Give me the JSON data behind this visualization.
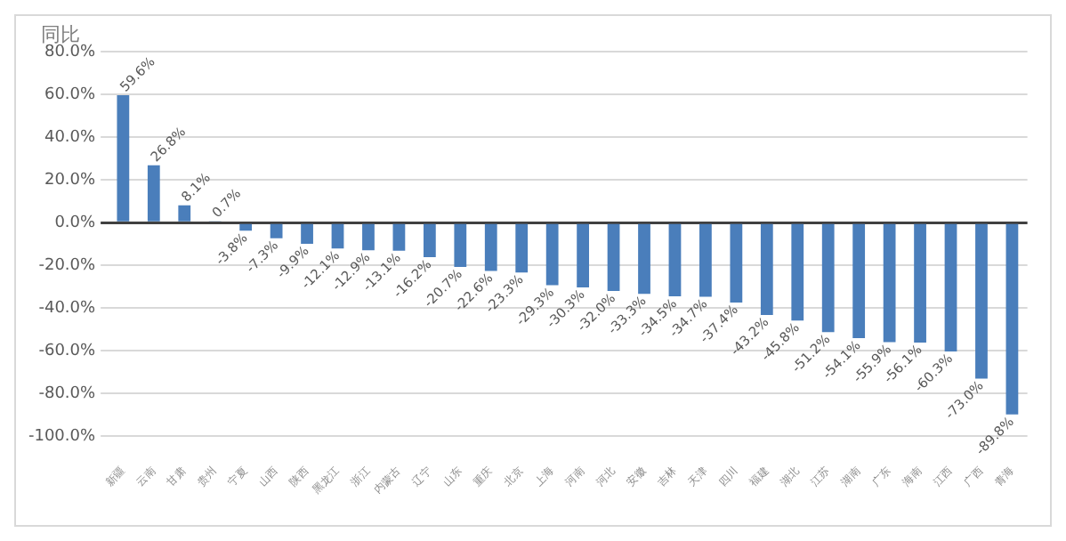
{
  "chart_data": {
    "type": "bar",
    "ylabel": "同比",
    "categories": [
      "新疆",
      "云南",
      "甘肃",
      "贵州",
      "宁夏",
      "山西",
      "陕西",
      "黑龙江",
      "浙江",
      "内蒙古",
      "辽宁",
      "山东",
      "重庆",
      "北京",
      "上海",
      "河南",
      "河北",
      "安徽",
      "吉林",
      "天津",
      "四川",
      "福建",
      "湖北",
      "江苏",
      "湖南",
      "广东",
      "海南",
      "江西",
      "广西",
      "青海"
    ],
    "values": [
      59.6,
      26.8,
      8.1,
      0.7,
      -3.8,
      -7.3,
      -9.9,
      -12.1,
      -12.9,
      -13.1,
      -16.2,
      -20.7,
      -22.6,
      -23.3,
      -29.3,
      -30.3,
      -32.0,
      -33.3,
      -34.5,
      -34.7,
      -37.4,
      -43.2,
      -45.8,
      -51.2,
      -54.1,
      -55.9,
      -56.1,
      -60.3,
      -73.0,
      -89.8
    ],
    "value_labels": [
      "59.6%",
      "26.8%",
      "8.1%",
      "0.7%",
      "-3.8%",
      "-7.3%",
      "-9.9%",
      "-12.1%",
      "-12.9%",
      "-13.1%",
      "-16.2%",
      "-20.7%",
      "-22.6%",
      "-23.3%",
      "-29.3%",
      "-30.3%",
      "-32.0%",
      "-33.3%",
      "-34.5%",
      "-34.7%",
      "-37.4%",
      "-43.2%",
      "-45.8%",
      "-51.2%",
      "-54.1%",
      "-55.9%",
      "-56.1%",
      "-60.3%",
      "-73.0%",
      "-89.8%"
    ],
    "color": "#4a7ebb",
    "ylim": [
      -100,
      80
    ],
    "yticks": [
      {
        "value": 80,
        "label": "80.0%"
      },
      {
        "value": 60,
        "label": "60.0%"
      },
      {
        "value": 40,
        "label": "40.0%"
      },
      {
        "value": 20,
        "label": "20.0%"
      },
      {
        "value": 0,
        "label": "0.0%"
      },
      {
        "value": -20,
        "label": "-20.0%"
      },
      {
        "value": -40,
        "label": "-40.0%"
      },
      {
        "value": -60,
        "label": "-60.0%"
      },
      {
        "value": -80,
        "label": "-80.0%"
      },
      {
        "value": -100,
        "label": "-100.0%"
      }
    ],
    "grid": "y",
    "legend": false
  }
}
